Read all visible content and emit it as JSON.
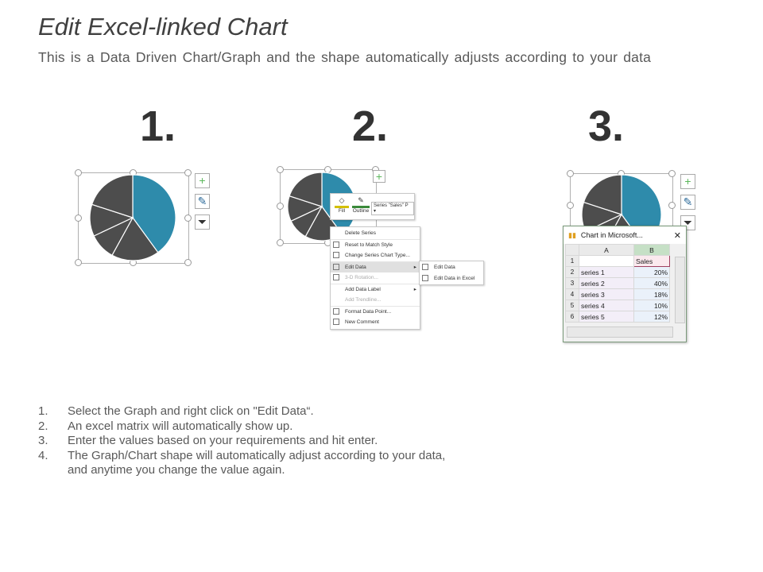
{
  "title": "Edit Excel-linked Chart",
  "subtitle": "This is a Data Driven Chart/Graph and the shape automatically adjusts according to your data",
  "steps": [
    "1.",
    "2.",
    "3."
  ],
  "colors": {
    "accent": "#2e8bab",
    "dark": "#4d4d4d",
    "green": "#5cb85c"
  },
  "chart_icons": [
    "plus-icon",
    "brush-icon",
    "filter-icon"
  ],
  "toolbar": {
    "fill": "Fill",
    "outline": "Outline",
    "series_select": "Series \"Sales\" P"
  },
  "context_menu": [
    {
      "label": "Delete Series",
      "icon": ""
    },
    {
      "label": "Reset to Match Style",
      "icon": "reset-icon"
    },
    {
      "label": "Change Series Chart Type...",
      "icon": "chart-type-icon"
    },
    {
      "label": "Edit Data",
      "icon": "edit-data-icon",
      "submenu": true,
      "highlighted": true
    },
    {
      "label": "3-D Rotation...",
      "icon": "rotation-icon",
      "disabled": true
    },
    {
      "label": "Add Data Label",
      "icon": "",
      "submenu": true
    },
    {
      "label": "Add Trendline...",
      "icon": "",
      "disabled": true
    },
    {
      "label": "Format Data Point...",
      "icon": "format-icon"
    },
    {
      "label": "New Comment",
      "icon": "comment-icon"
    }
  ],
  "submenu": [
    "Edit Data",
    "Edit Data in Excel"
  ],
  "excel": {
    "title": "Chart in Microsoft...",
    "columns": [
      "A",
      "B"
    ],
    "header": "Sales",
    "rows": [
      {
        "n": "2",
        "label": "series 1",
        "value": "20%"
      },
      {
        "n": "3",
        "label": "series 2",
        "value": "40%"
      },
      {
        "n": "4",
        "label": "series 3",
        "value": "18%"
      },
      {
        "n": "5",
        "label": "series 4",
        "value": "10%"
      },
      {
        "n": "6",
        "label": "series 5",
        "value": "12%"
      }
    ]
  },
  "chart_data": {
    "type": "pie",
    "categories": [
      "series 1",
      "series 2",
      "series 3",
      "series 4",
      "series 5"
    ],
    "values": [
      20,
      40,
      18,
      10,
      12
    ],
    "series_name": "Sales",
    "highlight": "series 2"
  },
  "instructions": [
    {
      "n": "1.",
      "text": "Select the Graph and right click on \"Edit Data“."
    },
    {
      "n": "2.",
      "text": "An excel matrix will automatically show up."
    },
    {
      "n": "3.",
      "text": "Enter the values based on your requirements and hit enter."
    },
    {
      "n": "4.",
      "text": "The Graph/Chart shape will automatically adjust according to your data,"
    },
    {
      "n": "",
      "text": "and anytime you change the value again."
    }
  ]
}
